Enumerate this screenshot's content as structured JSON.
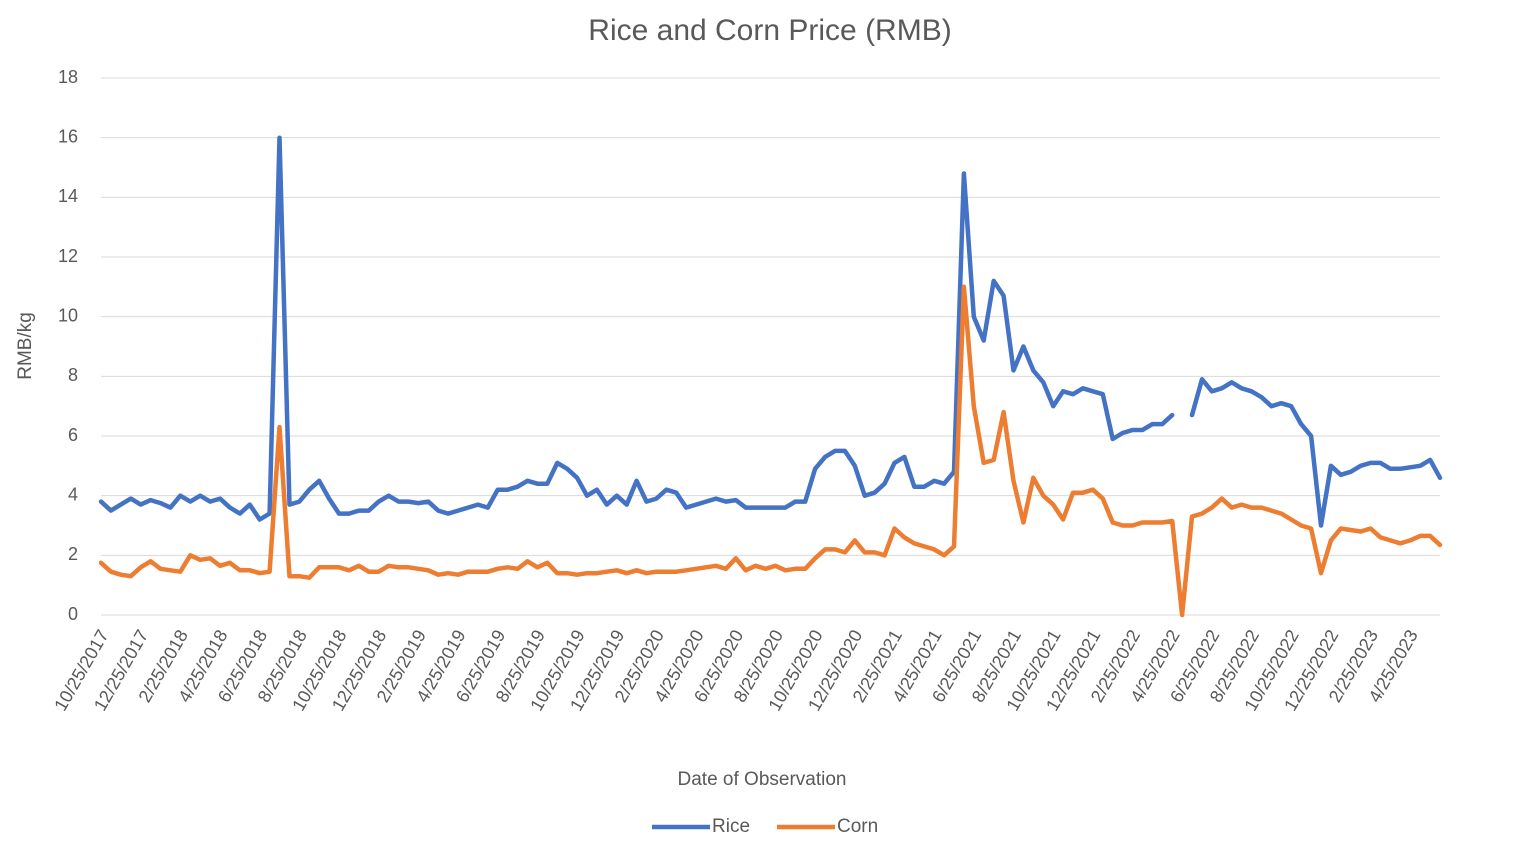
{
  "chart_data": {
    "type": "line",
    "title": "Rice and Corn Price (RMB)",
    "x_label": "Date of Observation",
    "y_label": "RMB/kg",
    "categories": [
      "10/25/2017",
      null,
      null,
      null,
      "12/25/2017",
      null,
      null,
      null,
      "2/25/2018",
      null,
      null,
      null,
      "4/25/2018",
      null,
      null,
      null,
      "6/25/2018",
      null,
      null,
      null,
      "8/25/2018",
      null,
      null,
      null,
      "10/25/2018",
      null,
      null,
      null,
      "12/25/2018",
      null,
      null,
      null,
      "2/25/2019",
      null,
      null,
      null,
      "4/25/2019",
      null,
      null,
      null,
      "6/25/2019",
      null,
      null,
      null,
      "8/25/2019",
      null,
      null,
      null,
      "10/25/2019",
      null,
      null,
      null,
      "12/25/2019",
      null,
      null,
      null,
      "2/25/2020",
      null,
      null,
      null,
      "4/25/2020",
      null,
      null,
      null,
      "6/25/2020",
      null,
      null,
      null,
      "8/25/2020",
      null,
      null,
      null,
      "10/25/2020",
      null,
      null,
      null,
      "12/25/2020",
      null,
      null,
      null,
      "2/25/2021",
      null,
      null,
      null,
      "4/25/2021",
      null,
      null,
      null,
      "6/25/2021",
      null,
      null,
      null,
      "8/25/2021",
      null,
      null,
      null,
      "10/25/2021",
      null,
      null,
      null,
      "12/25/2021",
      null,
      null,
      null,
      "2/25/2022",
      null,
      null,
      null,
      "4/25/2022",
      null,
      null,
      null,
      "6/25/2022",
      null,
      null,
      null,
      "8/25/2022",
      null,
      null,
      null,
      "10/25/2022",
      null,
      null,
      null,
      "12/25/2022",
      null,
      null,
      null,
      "2/25/2023",
      null,
      null,
      null,
      "4/25/2023",
      null,
      null,
      null
    ],
    "series": [
      {
        "name": "Rice",
        "color": "#4472c4",
        "values": [
          3.8,
          3.5,
          3.7,
          3.9,
          3.7,
          3.85,
          3.75,
          3.6,
          4.0,
          3.8,
          4.0,
          3.8,
          3.9,
          3.6,
          3.4,
          3.7,
          3.2,
          3.4,
          16.0,
          3.7,
          3.8,
          4.2,
          4.5,
          3.9,
          3.4,
          3.4,
          3.5,
          3.5,
          3.8,
          4.0,
          3.8,
          3.8,
          3.75,
          3.8,
          3.5,
          3.4,
          3.5,
          3.6,
          3.7,
          3.6,
          4.2,
          4.2,
          4.3,
          4.5,
          4.4,
          4.4,
          5.1,
          4.9,
          4.6,
          4.0,
          4.2,
          3.7,
          4.0,
          3.7,
          4.5,
          3.8,
          3.9,
          4.2,
          4.1,
          3.6,
          3.7,
          3.8,
          3.9,
          3.8,
          3.85,
          3.6,
          3.6,
          3.6,
          3.6,
          3.6,
          3.8,
          3.8,
          4.9,
          5.3,
          5.5,
          5.5,
          5.0,
          4.0,
          4.1,
          4.4,
          5.1,
          5.3,
          4.3,
          4.3,
          4.5,
          4.4,
          4.8,
          14.8,
          10.0,
          9.2,
          11.2,
          10.7,
          8.2,
          9.0,
          8.2,
          7.8,
          7.0,
          7.5,
          7.4,
          7.6,
          7.5,
          7.4,
          5.9,
          6.1,
          6.2,
          6.2,
          6.4,
          6.4,
          6.7,
          null,
          6.7,
          7.9,
          7.5,
          7.6,
          7.8,
          7.6,
          7.5,
          7.3,
          7.0,
          7.1,
          7.0,
          6.4,
          6.0,
          3.0,
          5.0,
          4.7,
          4.8,
          5.0,
          5.1,
          5.1,
          4.9,
          4.9,
          4.95,
          5.0,
          5.2,
          4.6
        ]
      },
      {
        "name": "Corn",
        "color": "#ed7d31",
        "values": [
          1.75,
          1.45,
          1.35,
          1.3,
          1.6,
          1.8,
          1.55,
          1.5,
          1.45,
          2.0,
          1.85,
          1.9,
          1.65,
          1.75,
          1.5,
          1.5,
          1.4,
          1.45,
          6.3,
          1.3,
          1.3,
          1.25,
          1.6,
          1.6,
          1.6,
          1.5,
          1.65,
          1.45,
          1.45,
          1.65,
          1.6,
          1.6,
          1.55,
          1.5,
          1.35,
          1.4,
          1.35,
          1.45,
          1.45,
          1.45,
          1.55,
          1.6,
          1.55,
          1.8,
          1.6,
          1.75,
          1.4,
          1.4,
          1.35,
          1.4,
          1.4,
          1.45,
          1.5,
          1.4,
          1.5,
          1.4,
          1.45,
          1.45,
          1.45,
          1.5,
          1.55,
          1.6,
          1.65,
          1.55,
          1.9,
          1.5,
          1.65,
          1.55,
          1.65,
          1.5,
          1.55,
          1.55,
          1.9,
          2.2,
          2.2,
          2.1,
          2.5,
          2.1,
          2.1,
          2.0,
          2.9,
          2.6,
          2.4,
          2.3,
          2.2,
          2.0,
          2.3,
          11.0,
          7.0,
          5.1,
          5.2,
          6.8,
          4.5,
          3.1,
          4.6,
          4.0,
          3.7,
          3.2,
          4.1,
          4.1,
          4.2,
          3.9,
          3.1,
          3.0,
          3.0,
          3.1,
          3.1,
          3.1,
          3.15,
          0,
          3.3,
          3.4,
          3.6,
          3.9,
          3.6,
          3.7,
          3.6,
          3.6,
          3.5,
          3.4,
          3.2,
          3.0,
          2.9,
          1.4,
          2.5,
          2.9,
          2.85,
          2.8,
          2.9,
          2.6,
          2.5,
          2.4,
          2.5,
          2.65,
          2.65,
          2.35
        ]
      }
    ],
    "ylim": [
      0,
      18
    ],
    "yticks": [
      0,
      2,
      4,
      6,
      8,
      10,
      12,
      14,
      16,
      18
    ],
    "grid": true,
    "legend": "bottom"
  }
}
